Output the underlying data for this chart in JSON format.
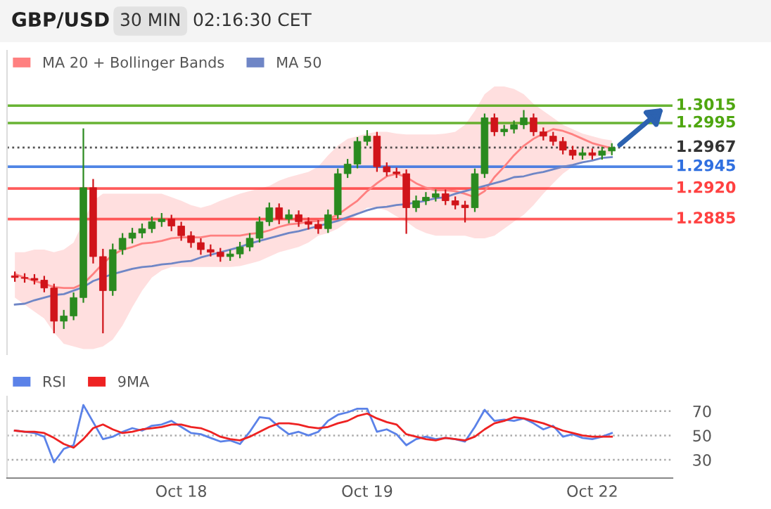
{
  "chart_data": [
    {
      "type": "candlestick",
      "title": "GBP/USD",
      "subtitle": "30 MIN",
      "annotations": [
        "02:16:30 CET"
      ],
      "categories": [
        null,
        null,
        null,
        null,
        null,
        null,
        null,
        null,
        null,
        null,
        null,
        null,
        null,
        null,
        null,
        null,
        null,
        null,
        null,
        null,
        null,
        null,
        null,
        null,
        null,
        null,
        null,
        null,
        null,
        null,
        null,
        null,
        null,
        null,
        null,
        null,
        null,
        null,
        null,
        null,
        null,
        null,
        null,
        null,
        null,
        null,
        null,
        null,
        null,
        null,
        null,
        null,
        null,
        null,
        null,
        null,
        null,
        null,
        null,
        null,
        null,
        null
      ],
      "ohlc": [
        [
          1.282,
          1.2824,
          1.2814,
          1.2818
        ],
        [
          1.2818,
          1.2822,
          1.2813,
          1.2817
        ],
        [
          1.2817,
          1.2821,
          1.2811,
          1.2815
        ],
        [
          1.2815,
          1.2819,
          1.2802,
          1.2806
        ],
        [
          1.2806,
          1.281,
          1.2755,
          1.2768
        ],
        [
          1.2768,
          1.278,
          1.276,
          1.2774
        ],
        [
          1.2774,
          1.28,
          1.277,
          1.2795
        ],
        [
          1.2795,
          1.2988,
          1.279,
          1.2921
        ],
        [
          1.2921,
          1.293,
          1.2835,
          1.2842
        ],
        [
          1.2842,
          1.285,
          1.2755,
          1.2803
        ],
        [
          1.2803,
          1.2856,
          1.2798,
          1.285
        ],
        [
          1.285,
          1.2868,
          1.2845,
          1.2863
        ],
        [
          1.2863,
          1.2874,
          1.2858,
          1.2869
        ],
        [
          1.2869,
          1.2879,
          1.2864,
          1.2874
        ],
        [
          1.2874,
          1.2887,
          1.287,
          1.2882
        ],
        [
          1.2882,
          1.2891,
          1.2877,
          1.2885
        ],
        [
          1.2885,
          1.2889,
          1.2872,
          1.2877
        ],
        [
          1.2877,
          1.2881,
          1.2861,
          1.2866
        ],
        [
          1.2866,
          1.287,
          1.2853,
          1.2858
        ],
        [
          1.2858,
          1.2862,
          1.2845,
          1.285
        ],
        [
          1.285,
          1.2855,
          1.2843,
          1.2847
        ],
        [
          1.2847,
          1.2851,
          1.2837,
          1.2842
        ],
        [
          1.2842,
          1.2849,
          1.2838,
          1.2845
        ],
        [
          1.2845,
          1.2858,
          1.2841,
          1.2853
        ],
        [
          1.2853,
          1.2868,
          1.2849,
          1.2863
        ],
        [
          1.2863,
          1.2887,
          1.2859,
          1.2882
        ],
        [
          1.2882,
          1.2903,
          1.2878,
          1.2898
        ],
        [
          1.2898,
          1.2902,
          1.288,
          1.2885
        ],
        [
          1.2885,
          1.2895,
          1.2881,
          1.289
        ],
        [
          1.289,
          1.2894,
          1.2877,
          1.2882
        ],
        [
          1.2882,
          1.2886,
          1.2874,
          1.2879
        ],
        [
          1.2879,
          1.2883,
          1.2869,
          1.2874
        ],
        [
          1.2874,
          1.2895,
          1.287,
          1.289
        ],
        [
          1.289,
          1.2942,
          1.2886,
          1.2937
        ],
        [
          1.2937,
          1.2953,
          1.2933,
          1.2948
        ],
        [
          1.2948,
          1.2978,
          1.2944,
          1.2974
        ],
        [
          1.2974,
          1.2986,
          1.297,
          1.298
        ],
        [
          1.298,
          1.2984,
          1.294,
          1.2945
        ],
        [
          1.2945,
          1.2949,
          1.2935,
          1.2939
        ],
        [
          1.2939,
          1.2943,
          1.2933,
          1.2937
        ],
        [
          1.2937,
          1.2941,
          1.2869,
          1.2898
        ],
        [
          1.2898,
          1.2911,
          1.2894,
          1.2906
        ],
        [
          1.2906,
          1.2915,
          1.2902,
          1.291
        ],
        [
          1.291,
          1.2918,
          1.2906,
          1.2914
        ],
        [
          1.2914,
          1.2918,
          1.2902,
          1.2906
        ],
        [
          1.2906,
          1.291,
          1.2897,
          1.2901
        ],
        [
          1.2901,
          1.2905,
          1.2882,
          1.2898
        ],
        [
          1.2898,
          1.2942,
          1.2894,
          1.2937
        ],
        [
          1.2937,
          1.3005,
          1.2933,
          1.3001
        ],
        [
          1.3001,
          1.3005,
          1.2981,
          1.2985
        ],
        [
          1.2985,
          1.2992,
          1.2981,
          1.2988
        ],
        [
          1.2988,
          1.2997,
          1.2984,
          1.2993
        ],
        [
          1.2993,
          1.3009,
          1.2989,
          1.3001
        ],
        [
          1.3001,
          1.3005,
          1.2981,
          1.2985
        ],
        [
          1.2985,
          1.2989,
          1.2976,
          1.298
        ],
        [
          1.298,
          1.2984,
          1.297,
          1.2974
        ],
        [
          1.2974,
          1.2978,
          1.296,
          1.2964
        ],
        [
          1.2964,
          1.2968,
          1.2954,
          1.2958
        ],
        [
          1.2958,
          1.2965,
          1.2954,
          1.2961
        ],
        [
          1.2961,
          1.2965,
          1.2954,
          1.2958
        ],
        [
          1.2958,
          1.2967,
          1.2954,
          1.2963
        ],
        [
          1.2963,
          1.2971,
          1.2959,
          1.2967
        ]
      ],
      "series": [
        {
          "name": "MA 20 + Bollinger Bands",
          "type": "line",
          "color": "#ff8080",
          "values": [
            1.2822,
            1.2818,
            1.2814,
            1.2811,
            1.2807,
            1.2806,
            1.2806,
            1.2811,
            1.2822,
            1.2834,
            1.2844,
            1.285,
            1.2853,
            1.2857,
            1.2858,
            1.286,
            1.2863,
            1.2864,
            1.2864,
            1.2864,
            1.2866,
            1.2866,
            1.2866,
            1.2866,
            1.2868,
            1.2869,
            1.2872,
            1.2876,
            1.2879,
            1.288,
            1.2882,
            1.2883,
            1.2885,
            1.289,
            1.2898,
            1.2906,
            1.2917,
            1.2926,
            1.2934,
            1.2937,
            1.2933,
            1.2926,
            1.2921,
            1.2918,
            1.2918,
            1.2917,
            1.2914,
            1.291,
            1.2917,
            1.2933,
            1.2945,
            1.2958,
            1.2969,
            1.2977,
            1.2983,
            1.2988,
            1.2986,
            1.2982,
            1.2977,
            1.2972,
            1.2969,
            1.2966
          ],
          "upper": [
            1.2847,
            1.2847,
            1.285,
            1.285,
            1.2847,
            1.285,
            1.2858,
            1.2882,
            1.2906,
            1.2914,
            1.2914,
            1.2914,
            1.2914,
            1.2914,
            1.2914,
            1.2914,
            1.291,
            1.2906,
            1.2901,
            1.2898,
            1.2901,
            1.2906,
            1.291,
            1.2914,
            1.2917,
            1.292,
            1.2923,
            1.2929,
            1.2933,
            1.2936,
            1.2939,
            1.2945,
            1.2958,
            1.2969,
            1.2977,
            1.298,
            1.2983,
            1.2985,
            1.2985,
            1.2983,
            1.2982,
            1.2982,
            1.2982,
            1.2982,
            1.2983,
            1.2985,
            1.2993,
            1.3009,
            1.3028,
            1.3037,
            1.3037,
            1.3034,
            1.3028,
            1.3017,
            1.3009,
            1.3001,
            1.2993,
            1.2988,
            1.2983,
            1.298,
            1.2977,
            1.2975
          ],
          "lower": [
            1.2795,
            1.2787,
            1.2779,
            1.2771,
            1.2755,
            1.2742,
            1.2739,
            1.2736,
            1.2736,
            1.2739,
            1.2747,
            1.2763,
            1.2784,
            1.2803,
            1.2818,
            1.2826,
            1.283,
            1.283,
            1.283,
            1.283,
            1.283,
            1.283,
            1.283,
            1.2831,
            1.2834,
            1.2837,
            1.2842,
            1.2847,
            1.285,
            1.2853,
            1.2858,
            1.2866,
            1.2869,
            1.2874,
            1.2882,
            1.289,
            1.2898,
            1.2898,
            1.2895,
            1.2888,
            1.2882,
            1.2874,
            1.2869,
            1.2866,
            1.2866,
            1.2866,
            1.2866,
            1.2863,
            1.2863,
            1.2866,
            1.2874,
            1.2882,
            1.289,
            1.2901,
            1.2914,
            1.2926,
            1.2937,
            1.2945,
            1.2952,
            1.2955,
            1.2958,
            1.296
          ]
        },
        {
          "name": "MA 50",
          "type": "line",
          "color": "#6f86c6",
          "values": [
            1.2787,
            1.2788,
            1.2792,
            1.2795,
            1.2798,
            1.2799,
            1.2803,
            1.2807,
            1.2814,
            1.2818,
            1.2822,
            1.2825,
            1.2828,
            1.283,
            1.2831,
            1.2833,
            1.2834,
            1.2836,
            1.2837,
            1.2841,
            1.2844,
            1.2847,
            1.285,
            1.2853,
            1.2857,
            1.286,
            1.2863,
            1.2866,
            1.2869,
            1.2871,
            1.2874,
            1.2877,
            1.288,
            1.2883,
            1.2887,
            1.2891,
            1.2895,
            1.2898,
            1.2899,
            1.2901,
            1.2902,
            1.2904,
            1.2906,
            1.2909,
            1.291,
            1.2914,
            1.2917,
            1.292,
            1.2923,
            1.2926,
            1.2929,
            1.2933,
            1.2934,
            1.2937,
            1.2939,
            1.2942,
            1.2945,
            1.2947,
            1.295,
            1.2952,
            1.2955,
            1.2956
          ]
        }
      ],
      "ylim": [
        1.273,
        1.3078
      ],
      "ref_lines": [
        {
          "axis": "y",
          "value": 1.3015,
          "label": "1.3015",
          "color": "#4ea60f",
          "line_style": "solid"
        },
        {
          "axis": "y",
          "value": 1.2995,
          "label": "1.2995",
          "color": "#4ea60f",
          "line_style": "solid"
        },
        {
          "axis": "y",
          "value": 1.2967,
          "label": "1.2967",
          "color": "#333333",
          "line_style": "dotted"
        },
        {
          "axis": "y",
          "value": 1.2945,
          "label": "1.2945",
          "color": "#2f6fe0",
          "line_style": "solid"
        },
        {
          "axis": "y",
          "value": 1.292,
          "label": "1.2920",
          "color": "#ff4040",
          "line_style": "solid"
        },
        {
          "axis": "y",
          "value": 1.2885,
          "label": "1.2885",
          "color": "#ff4040",
          "line_style": "solid"
        }
      ],
      "legend": "top left",
      "tick_labels": false
    },
    {
      "type": "line",
      "categories": [
        null,
        null,
        null,
        null,
        null,
        null,
        null,
        null,
        null,
        null,
        null,
        null,
        null,
        null,
        null,
        null,
        null,
        "Oct 18",
        null,
        null,
        null,
        null,
        null,
        null,
        null,
        null,
        null,
        null,
        null,
        null,
        null,
        null,
        null,
        null,
        null,
        null,
        "Oct 19",
        null,
        null,
        null,
        null,
        null,
        null,
        null,
        null,
        null,
        null,
        null,
        null,
        null,
        null,
        null,
        null,
        null,
        null,
        null,
        null,
        null,
        null,
        "Oct 22",
        null,
        null
      ],
      "series": [
        {
          "name": "RSI",
          "color": "#5b82e8",
          "values": [
            54,
            53,
            52,
            49,
            28,
            39,
            42,
            75,
            61,
            47,
            49,
            53,
            56,
            54,
            58,
            59,
            62,
            57,
            52,
            51,
            48,
            45,
            46,
            43,
            53,
            65,
            64,
            57,
            51,
            53,
            50,
            53,
            62,
            67,
            69,
            72,
            72,
            53,
            55,
            51,
            42,
            47,
            49,
            47,
            48,
            47,
            45,
            57,
            71,
            62,
            63,
            62,
            64,
            60,
            55,
            58,
            49,
            51,
            48,
            47,
            49,
            52
          ]
        },
        {
          "name": "9MA",
          "color": "#ee2222",
          "values": [
            54,
            53,
            53,
            52,
            48,
            43,
            40,
            47,
            56,
            59,
            55,
            52,
            53,
            55,
            56,
            57,
            59,
            59,
            57,
            56,
            53,
            49,
            47,
            46,
            49,
            53,
            57,
            60,
            60,
            59,
            57,
            56,
            57,
            60,
            62,
            66,
            68,
            64,
            61,
            59,
            51,
            49,
            47,
            46,
            48,
            47,
            46,
            49,
            55,
            60,
            62,
            65,
            64,
            62,
            60,
            57,
            54,
            52,
            50,
            49,
            49,
            49
          ]
        }
      ],
      "ylim": [
        15,
        82
      ],
      "yticks": [
        30,
        50,
        70
      ],
      "grid": "y",
      "legend": "top left"
    }
  ]
}
